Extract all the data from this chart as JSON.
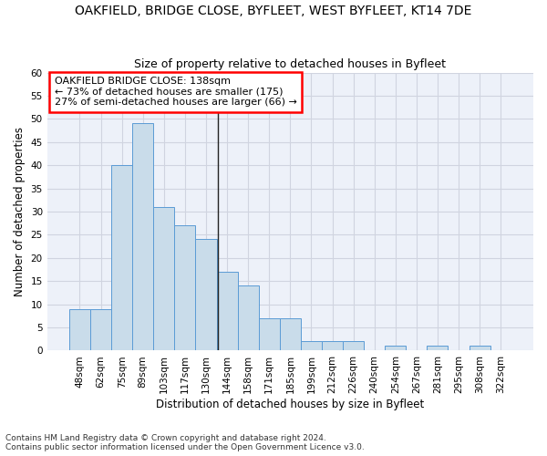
{
  "title": "OAKFIELD, BRIDGE CLOSE, BYFLEET, WEST BYFLEET, KT14 7DE",
  "subtitle": "Size of property relative to detached houses in Byfleet",
  "xlabel": "Distribution of detached houses by size in Byfleet",
  "ylabel": "Number of detached properties",
  "categories": [
    "48sqm",
    "62sqm",
    "75sqm",
    "89sqm",
    "103sqm",
    "117sqm",
    "130sqm",
    "144sqm",
    "158sqm",
    "171sqm",
    "185sqm",
    "199sqm",
    "212sqm",
    "226sqm",
    "240sqm",
    "254sqm",
    "267sqm",
    "281sqm",
    "295sqm",
    "308sqm",
    "322sqm"
  ],
  "values": [
    9,
    9,
    40,
    49,
    31,
    27,
    24,
    17,
    14,
    7,
    7,
    2,
    2,
    2,
    0,
    1,
    0,
    1,
    0,
    1,
    0
  ],
  "bar_color": "#c9dcea",
  "bar_edge_color": "#5b9bd5",
  "ylim": [
    0,
    60
  ],
  "yticks": [
    0,
    5,
    10,
    15,
    20,
    25,
    30,
    35,
    40,
    45,
    50,
    55,
    60
  ],
  "marker_label": "OAKFIELD BRIDGE CLOSE: 138sqm",
  "annotation_line1": "← 73% of detached houses are smaller (175)",
  "annotation_line2": "27% of semi-detached houses are larger (66) →",
  "footnote1": "Contains HM Land Registry data © Crown copyright and database right 2024.",
  "footnote2": "Contains public sector information licensed under the Open Government Licence v3.0.",
  "plot_bg_color": "#edf1f9",
  "fig_bg_color": "#ffffff",
  "grid_color": "#d0d4e0",
  "title_fontsize": 10,
  "subtitle_fontsize": 9,
  "axis_label_fontsize": 8.5,
  "tick_fontsize": 7.5,
  "footnote_fontsize": 6.5
}
